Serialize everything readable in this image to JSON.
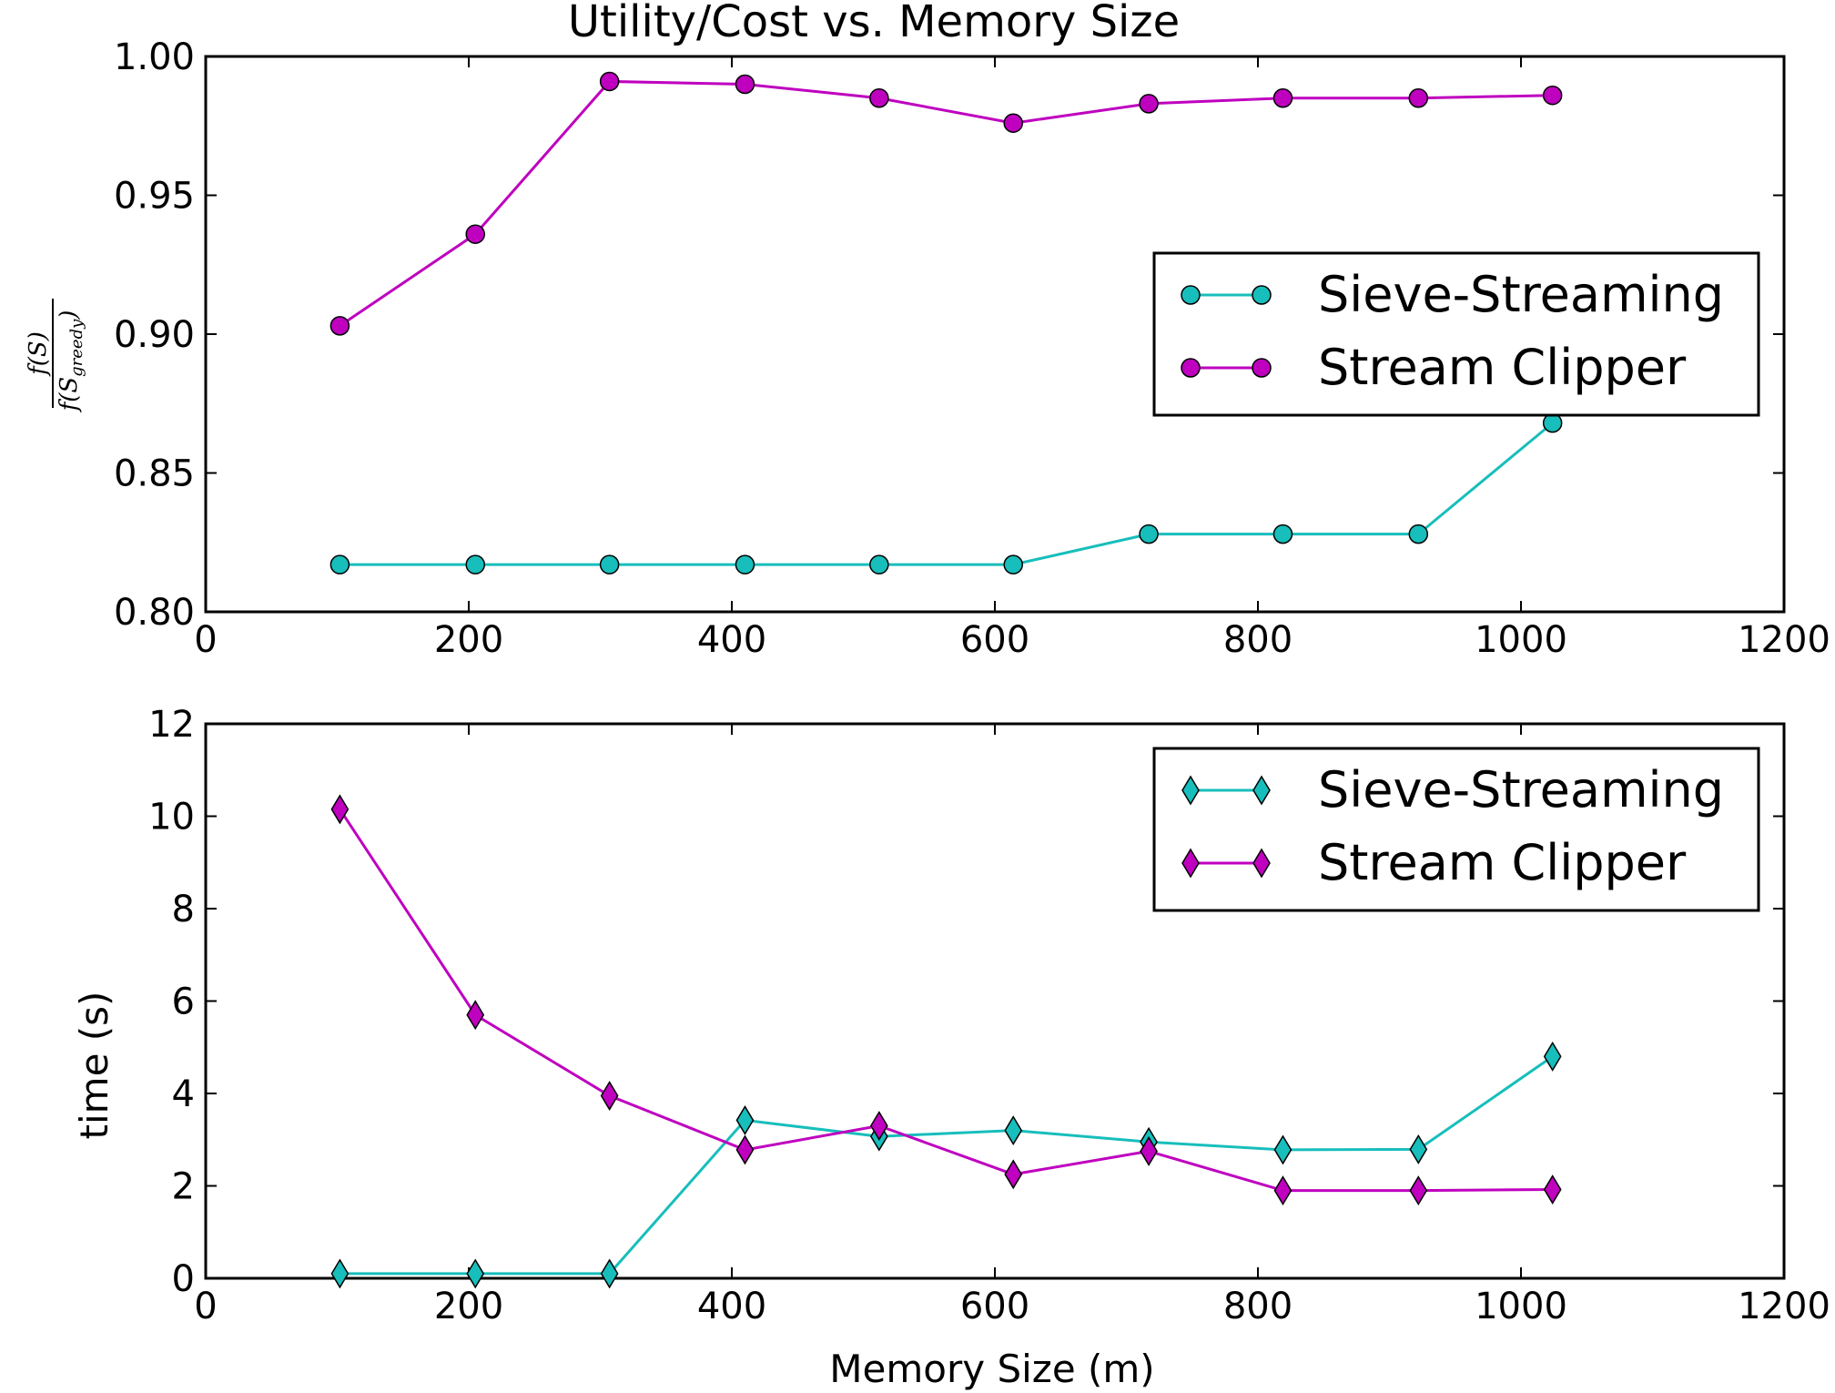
{
  "chart_data": [
    {
      "type": "line",
      "title": "Utility/Cost vs. Memory Size",
      "ylabel_numerator": "f(S)",
      "ylabel_denominator": "f(S",
      "ylabel_subscript": "greedy",
      "ylabel_close": ")",
      "xlim": [
        0,
        1200
      ],
      "ylim": [
        0.8,
        1.0
      ],
      "xticks": [
        0,
        200,
        400,
        600,
        800,
        1000,
        1200
      ],
      "xtick_labels": [
        "0",
        "200",
        "400",
        "600",
        "800",
        "1000",
        "1200"
      ],
      "yticks": [
        0.8,
        0.85,
        0.9,
        0.95,
        1.0
      ],
      "ytick_labels": [
        "0.80",
        "0.85",
        "0.90",
        "0.95",
        "1.00"
      ],
      "legend_position": "center-right",
      "marker": "circle",
      "x": [
        102,
        205,
        307,
        410,
        512,
        614,
        717,
        819,
        922,
        1024
      ],
      "series": [
        {
          "name": "Sieve-Streaming",
          "color": "#17bebb",
          "values": [
            0.817,
            0.817,
            0.817,
            0.817,
            0.817,
            0.817,
            0.828,
            0.828,
            0.828,
            0.868
          ]
        },
        {
          "name": "Stream Clipper",
          "color": "#bf00bf",
          "values": [
            0.903,
            0.936,
            0.991,
            0.99,
            0.985,
            0.976,
            0.983,
            0.985,
            0.985,
            0.986
          ]
        }
      ]
    },
    {
      "type": "line",
      "xlabel": "Memory Size (m)",
      "ylabel": "time (s)",
      "xlim": [
        0,
        1200
      ],
      "ylim": [
        0,
        12
      ],
      "xticks": [
        0,
        200,
        400,
        600,
        800,
        1000,
        1200
      ],
      "xtick_labels": [
        "0",
        "200",
        "400",
        "600",
        "800",
        "1000",
        "1200"
      ],
      "yticks": [
        0,
        2,
        4,
        6,
        8,
        10,
        12
      ],
      "ytick_labels": [
        "0",
        "2",
        "4",
        "6",
        "8",
        "10",
        "12"
      ],
      "legend_position": "top-right",
      "marker": "diamond",
      "x": [
        102,
        205,
        307,
        410,
        512,
        614,
        717,
        819,
        922,
        1024
      ],
      "series": [
        {
          "name": "Sieve-Streaming",
          "color": "#17bebb",
          "values": [
            0.1,
            0.1,
            0.1,
            3.42,
            3.07,
            3.2,
            2.95,
            2.78,
            2.79,
            4.8
          ]
        },
        {
          "name": "Stream Clipper",
          "color": "#bf00bf",
          "values": [
            10.15,
            5.7,
            3.95,
            2.78,
            3.3,
            2.25,
            2.75,
            1.9,
            1.9,
            1.92
          ]
        }
      ]
    }
  ]
}
